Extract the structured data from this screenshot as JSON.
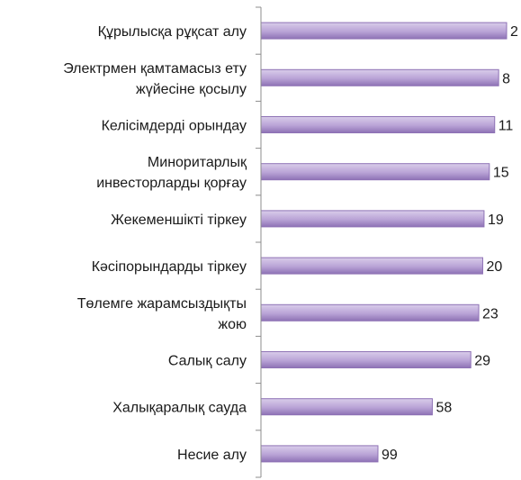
{
  "chart_data": {
    "type": "bar",
    "orientation": "horizontal",
    "categories": [
      [
        "Құрылысқа рұқсат алу"
      ],
      [
        "Электрмен қамтамасыз ету",
        "жүйесіне қосылу"
      ],
      [
        "Келісімдерді орындау"
      ],
      [
        "Миноритарлық",
        "инвесторларды қорғау"
      ],
      [
        "Жекеменшікті тіркеу"
      ],
      [
        "Кәсіпорындарды тіркеу"
      ],
      [
        "Төлемге жарамсыздықты",
        "жою"
      ],
      [
        "Салық салу"
      ],
      [
        "Халықаралық сауда"
      ],
      [
        "Несие алу"
      ]
    ],
    "values": [
      2,
      8,
      11,
      15,
      19,
      20,
      23,
      29,
      58,
      99
    ],
    "bar_color": "#b9a3d6",
    "bar_color_dark": "#8e72b5",
    "axis_color": "#8c8c8c",
    "title": "",
    "xlabel": "",
    "ylabel": ""
  }
}
